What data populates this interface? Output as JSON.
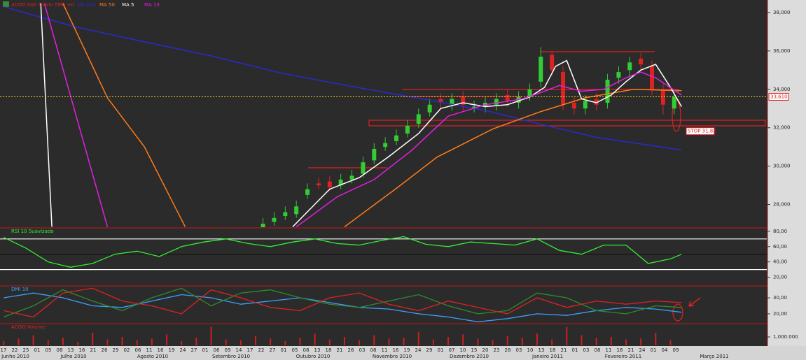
{
  "chart_data": [
    {
      "type": "candlestick",
      "title": "ACOO Ibdr Diário TMG +0",
      "up_color": "#33cc33",
      "down_color": "#dd2222",
      "x": [
        70,
        73,
        76,
        79,
        82,
        85,
        88,
        91,
        94,
        97,
        100,
        103,
        106,
        109,
        112,
        115,
        118,
        121,
        124,
        127,
        130,
        133,
        136,
        139,
        142,
        145,
        148,
        151,
        154,
        157,
        160,
        163,
        166,
        169,
        172,
        175,
        178,
        181
      ],
      "open": [
        26800,
        27100,
        27400,
        27500,
        28500,
        29100,
        29200,
        29000,
        29300,
        29600,
        30300,
        31000,
        31300,
        31700,
        32200,
        32800,
        33500,
        33200,
        33600,
        33000,
        33100,
        33200,
        33700,
        33300,
        33600,
        34400,
        35800,
        34900,
        33300,
        33000,
        33500,
        33300,
        34600,
        35000,
        35600,
        35200,
        34000,
        33000
      ],
      "high": [
        27300,
        27600,
        27900,
        28200,
        29100,
        29400,
        29500,
        29600,
        29800,
        30500,
        31200,
        31500,
        31900,
        32400,
        33000,
        33500,
        33800,
        33800,
        33900,
        33400,
        33600,
        33800,
        34000,
        33900,
        34300,
        36200,
        36000,
        35200,
        33600,
        33700,
        33800,
        34800,
        35200,
        35700,
        35900,
        35500,
        34300,
        33900
      ],
      "low": [
        26600,
        26900,
        27200,
        27300,
        28300,
        28800,
        28700,
        28800,
        29100,
        29400,
        30100,
        30800,
        31100,
        31500,
        32000,
        32600,
        33000,
        32900,
        32900,
        32800,
        32800,
        32900,
        33100,
        33000,
        33400,
        34100,
        34700,
        32900,
        32700,
        32700,
        32900,
        33000,
        34300,
        34700,
        35000,
        33700,
        32700,
        32700
      ],
      "close": [
        27000,
        27300,
        27600,
        27900,
        28800,
        29000,
        28900,
        29300,
        29500,
        30200,
        30900,
        31200,
        31600,
        32100,
        32700,
        33200,
        33300,
        33500,
        33200,
        33100,
        33300,
        33500,
        33400,
        33600,
        34000,
        35700,
        35000,
        33200,
        33000,
        33400,
        33200,
        34500,
        34900,
        35400,
        35300,
        34000,
        33200,
        33610
      ],
      "series": [
        {
          "name": "MA 200",
          "color": "#2a2ad0",
          "x": [
            0,
            19,
            38,
            57,
            75,
            94,
            113,
            130,
            145,
            160,
            183
          ],
          "values": [
            38300,
            37270,
            36470,
            35700,
            34840,
            34150,
            33500,
            32900,
            32180,
            31500,
            30840
          ]
        },
        {
          "name": "MA 50",
          "color": "#ff7a1a",
          "x": [
            16,
            28,
            38,
            49,
            70,
            92,
            106,
            117,
            132,
            145,
            157,
            170,
            183
          ],
          "values": [
            38470,
            33560,
            31000,
            26840,
            null,
            26840,
            28840,
            30470,
            31930,
            32840,
            33560,
            34000,
            33930
          ]
        },
        {
          "name": "MA 5",
          "color": "#ffffff",
          "x": [
            10,
            13,
            40,
            78,
            88,
            96,
            104,
            112,
            118,
            124,
            130,
            136,
            142,
            146,
            149,
            152,
            156,
            160,
            164,
            168,
            172,
            176,
            180,
            183
          ],
          "values": [
            38470,
            26840,
            null,
            26840,
            28800,
            29400,
            30500,
            31700,
            33000,
            33300,
            33100,
            33200,
            33600,
            34100,
            35200,
            35500,
            33500,
            33300,
            33700,
            34400,
            35000,
            35300,
            34100,
            33100
          ]
        },
        {
          "name": "MA 13",
          "color": "#e020e0",
          "x": [
            11,
            28,
            50,
            79,
            90,
            100,
            110,
            120,
            130,
            140,
            146,
            150,
            156,
            162,
            168,
            172,
            176,
            183
          ],
          "values": [
            38470,
            26840,
            null,
            26840,
            28400,
            29300,
            30800,
            32600,
            33200,
            33500,
            33900,
            34200,
            33900,
            34000,
            34600,
            34900,
            34600,
            33700
          ]
        }
      ],
      "last_price": {
        "value": 33610,
        "label": "33,610"
      },
      "stop": {
        "value": 31820,
        "label": "STOP 31,82"
      },
      "xlim": [
        -1,
        206
      ],
      "ylim": [
        26820,
        38470
      ],
      "yticks": [
        {
          "value": 38000,
          "label": "38,000"
        },
        {
          "value": 36000,
          "label": "36,000"
        },
        {
          "value": 34000,
          "label": "34,000"
        },
        {
          "value": 32000,
          "label": "32,000"
        },
        {
          "value": 30000,
          "label": "30,000"
        },
        {
          "value": 28000,
          "label": "28,000"
        }
      ]
    },
    {
      "type": "line",
      "title": "RSI 10 Suavizado",
      "series": [
        {
          "color": "#33ee33",
          "x": [
            0,
            6,
            12,
            18,
            24,
            30,
            36,
            42,
            48,
            54,
            60,
            66,
            72,
            78,
            84,
            90,
            96,
            102,
            108,
            114,
            120,
            126,
            132,
            138,
            144,
            150,
            156,
            162,
            168,
            174,
            180,
            183
          ],
          "values": [
            72,
            58,
            40,
            33,
            38,
            50,
            54,
            47,
            60,
            66,
            70,
            64,
            60,
            66,
            70,
            64,
            62,
            68,
            73,
            63,
            60,
            66,
            64,
            62,
            70,
            55,
            50,
            62,
            62,
            38,
            44,
            50
          ]
        }
      ],
      "levels": [
        70,
        50,
        30
      ],
      "xlim": [
        -1,
        206
      ],
      "ylim": [
        10.5,
        83.5
      ],
      "yticks": [
        {
          "value": 80,
          "label": "80,00"
        },
        {
          "value": 60,
          "label": "60,00"
        },
        {
          "value": 40,
          "label": "40,00"
        },
        {
          "value": 20,
          "label": "20,00"
        }
      ]
    },
    {
      "type": "line",
      "title": "DMI 10",
      "series": [
        {
          "color": "#3aa0ff",
          "x": [
            0,
            8,
            16,
            24,
            32,
            40,
            48,
            56,
            64,
            72,
            80,
            88,
            96,
            104,
            112,
            120,
            128,
            136,
            144,
            152,
            160,
            168,
            176,
            183
          ],
          "values": [
            30,
            33,
            30,
            25,
            24,
            28,
            32,
            30,
            26,
            28,
            30,
            27,
            24,
            23,
            20,
            18,
            15,
            17,
            20,
            19,
            22,
            24,
            23,
            21
          ]
        },
        {
          "color": "#2e8b2e",
          "x": [
            0,
            8,
            16,
            24,
            32,
            40,
            48,
            56,
            64,
            72,
            80,
            88,
            96,
            104,
            112,
            120,
            128,
            136,
            144,
            152,
            160,
            168,
            176,
            183
          ],
          "values": [
            18,
            25,
            35,
            28,
            22,
            30,
            36,
            25,
            33,
            35,
            30,
            26,
            24,
            28,
            32,
            25,
            20,
            22,
            33,
            30,
            22,
            20,
            25,
            24
          ]
        },
        {
          "color": "#dd2222",
          "x": [
            0,
            8,
            16,
            24,
            32,
            40,
            48,
            56,
            64,
            72,
            80,
            88,
            96,
            104,
            112,
            120,
            128,
            136,
            144,
            152,
            160,
            168,
            176,
            183
          ],
          "values": [
            22,
            18,
            33,
            36,
            28,
            25,
            20,
            35,
            30,
            24,
            22,
            30,
            33,
            26,
            22,
            28,
            24,
            20,
            30,
            24,
            28,
            26,
            28,
            27
          ]
        }
      ],
      "xlim": [
        -1,
        206
      ],
      "ylim": [
        14.3,
        37
      ],
      "yticks": [
        {
          "value": 30,
          "label": "30,00"
        },
        {
          "value": 20,
          "label": "20,00"
        }
      ]
    },
    {
      "type": "bar",
      "title": "ACOO Volume",
      "color": "#cc1f1f",
      "x": [
        0,
        4,
        8,
        12,
        16,
        20,
        24,
        28,
        32,
        36,
        40,
        44,
        48,
        52,
        56,
        60,
        64,
        68,
        72,
        76,
        80,
        84,
        88,
        92,
        96,
        100,
        104,
        108,
        112,
        116,
        120,
        124,
        128,
        132,
        136,
        140,
        144,
        148,
        152,
        156,
        160,
        164,
        168,
        172,
        176,
        180
      ],
      "values": [
        500000,
        800000,
        1200000,
        600000,
        900000,
        400000,
        1500000,
        700000,
        1000000,
        600000,
        800000,
        1300000,
        500000,
        900000,
        2200000,
        700000,
        600000,
        1100000,
        800000,
        500000,
        900000,
        1400000,
        700000,
        1000000,
        600000,
        1200000,
        800000,
        900000,
        1600000,
        700000,
        1000000,
        1300000,
        800000,
        600000,
        1100000,
        900000,
        1400000,
        700000,
        2200000,
        1200000,
        900000,
        1000000,
        700000,
        800000,
        1500000,
        600000
      ],
      "xlim": [
        -1,
        206
      ],
      "ylim": [
        0,
        2500000
      ],
      "yticks": [
        {
          "value": 1000000,
          "label": "1,000.000"
        }
      ]
    }
  ],
  "date_axis": {
    "days": [
      "17",
      "22",
      "25",
      "01",
      "05",
      "08",
      "13",
      "16",
      "21",
      "26",
      "29",
      "02",
      "06",
      "11",
      "16",
      "19",
      "24",
      "27",
      "01",
      "06",
      "09",
      "14",
      "17",
      "22",
      "27",
      "01",
      "05",
      "08",
      "13",
      "18",
      "21",
      "26",
      "03",
      "08",
      "11",
      "16",
      "19",
      "24",
      "29",
      "01",
      "07",
      "10",
      "15",
      "20",
      "23",
      "28",
      "03",
      "10",
      "13",
      "18",
      "21",
      "01",
      "03",
      "08",
      "11",
      "16",
      "21",
      "24",
      "01",
      "04",
      "09"
    ],
    "months": [
      "Junho 2010",
      "Julho 2010",
      "Agosto 2010",
      "Setembro 2010",
      "Outubro 2010",
      "Novembro 2010",
      "Dezembro 2010",
      "Janeiro 2011",
      "Fevereiro 2011",
      "Março 2011"
    ]
  }
}
